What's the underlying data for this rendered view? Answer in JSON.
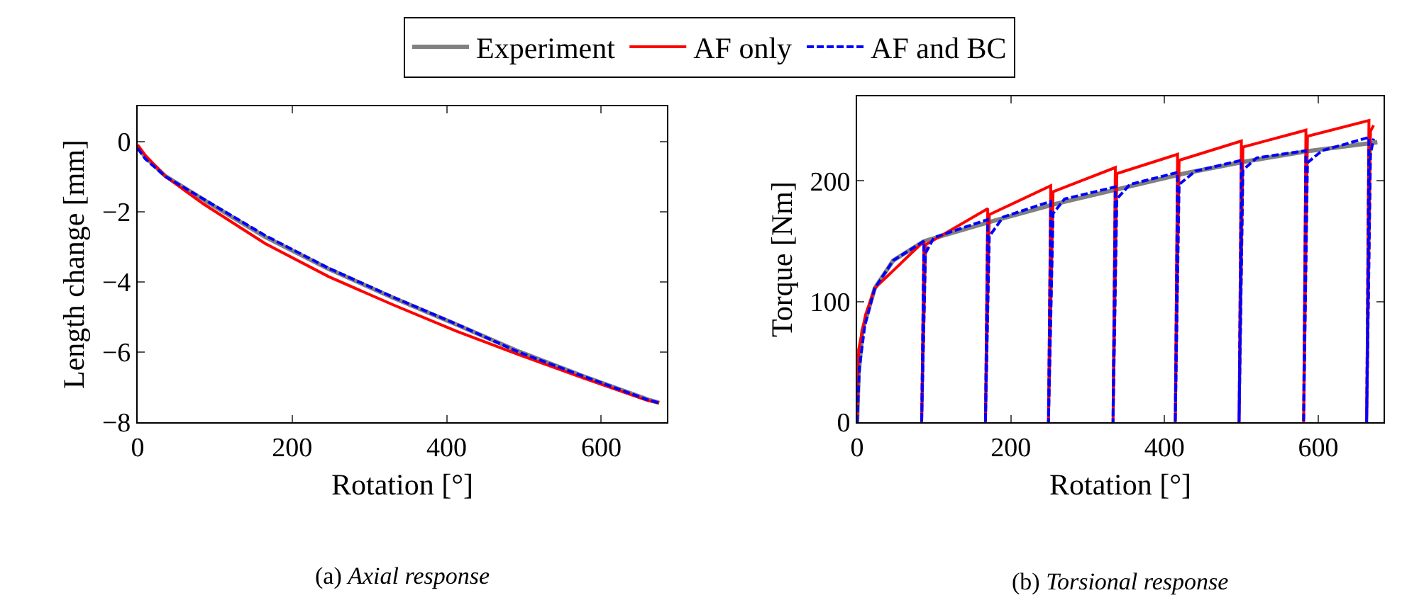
{
  "chart_data": [
    {
      "type": "line",
      "xlabel": "Rotation [°]",
      "ylabel": "Length change [mm]",
      "legend": "top",
      "grid": false,
      "marker": "none",
      "xlim": [
        0,
        685
      ],
      "xticks": [
        0,
        200,
        400,
        600
      ],
      "ylim": [
        -8,
        1
      ],
      "yticks": [
        {
          "value": -8,
          "label": "−8"
        },
        {
          "value": -6,
          "label": "−6"
        },
        {
          "value": -4,
          "label": "−4"
        },
        {
          "value": -2,
          "label": "−2"
        },
        0
      ],
      "annotations": [
        "(a) Axial response"
      ],
      "series": [
        {
          "name": "Experiment",
          "color": "#808080",
          "line_style": "solid",
          "x": [
            0,
            10,
            36,
            85,
            165,
            247,
            330,
            413,
            495,
            578,
            660,
            675
          ],
          "values": [
            -0.15,
            -0.45,
            -0.99,
            -1.66,
            -2.72,
            -3.63,
            -4.45,
            -5.22,
            -6.0,
            -6.7,
            -7.35,
            -7.45
          ]
        },
        {
          "name": "AF only",
          "color": "#ff0000",
          "line_style": "solid",
          "x": [
            0,
            10,
            36,
            85,
            165,
            247,
            330,
            413,
            495,
            578,
            660,
            675
          ],
          "values": [
            -0.1,
            -0.4,
            -1.0,
            -1.78,
            -2.91,
            -3.85,
            -4.65,
            -5.41,
            -6.09,
            -6.75,
            -7.38,
            -7.45
          ]
        },
        {
          "name": "AF and BC",
          "color": "#0000ff",
          "line_style": "dashed",
          "x": [
            0,
            10,
            36,
            85,
            165,
            247,
            330,
            413,
            495,
            578,
            660,
            675
          ],
          "values": [
            -0.2,
            -0.5,
            -1.0,
            -1.64,
            -2.68,
            -3.61,
            -4.43,
            -5.21,
            -6.02,
            -6.7,
            -7.36,
            -7.45
          ]
        }
      ]
    },
    {
      "type": "line",
      "xlabel": "Rotation [°]",
      "ylabel": "Torque [Nm]",
      "grid": false,
      "marker": "none",
      "xlim": [
        0,
        685
      ],
      "xticks": [
        0,
        200,
        400,
        600
      ],
      "ylim": [
        0,
        270
      ],
      "yticks": [
        0,
        100,
        200
      ],
      "annotations": [
        "(b) Torsional response"
      ],
      "series": [
        {
          "color": "#808080",
          "line_style": "solid",
          "x": [
            0,
            2,
            7,
            23,
            47,
            87,
            173,
            259,
            339,
            425,
            505,
            591,
            677
          ],
          "values": [
            0,
            40,
            76,
            111,
            134,
            150,
            166,
            181,
            193,
            206,
            216,
            225,
            232
          ]
        },
        {
          "color": "#ff0000",
          "line_style": "solid",
          "x": [
            0,
            2,
            11,
            23,
            87,
            84,
            89,
            170,
            167,
            172,
            252,
            249,
            255,
            336,
            333,
            338,
            417,
            414,
            419,
            500,
            497,
            502,
            584,
            581,
            586,
            666,
            663,
            668,
            672
          ],
          "values": [
            0,
            60,
            89,
            111,
            150,
            0,
            147,
            177,
            0,
            172,
            196,
            0,
            191,
            211,
            0,
            206,
            222,
            0,
            217,
            233,
            0,
            228,
            242,
            0,
            237,
            250,
            0,
            241,
            246
          ]
        },
        {
          "color": "#0000ff",
          "line_style": "dashed",
          "x": [
            0,
            3,
            10,
            23,
            47,
            87,
            84,
            89,
            100,
            170,
            167,
            172,
            190,
            252,
            249,
            255,
            270,
            336,
            333,
            338,
            355,
            417,
            414,
            419,
            440,
            500,
            497,
            502,
            520,
            584,
            581,
            586,
            605,
            666,
            663,
            668,
            672
          ],
          "values": [
            0,
            45,
            80,
            111,
            134,
            150,
            0,
            140,
            153,
            168,
            0,
            154,
            170,
            183,
            0,
            173,
            185,
            195,
            0,
            185,
            197,
            207,
            0,
            197,
            208,
            217,
            0,
            209,
            219,
            225,
            0,
            215,
            225,
            236,
            0,
            222,
            235
          ]
        }
      ]
    }
  ]
}
